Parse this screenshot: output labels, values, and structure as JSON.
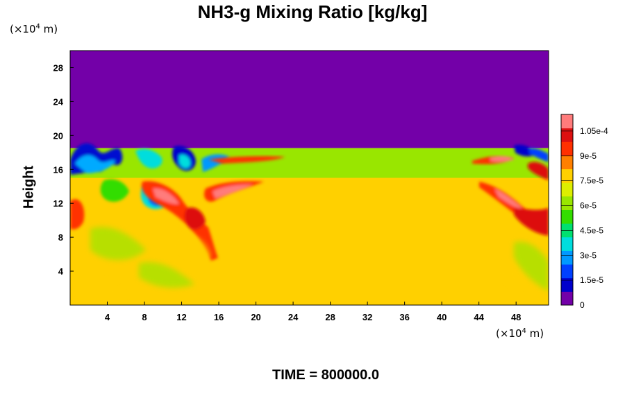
{
  "chart_data": {
    "type": "heatmap",
    "title": "NH3-g Mixing Ratio [kg/kg]",
    "ylabel": "Height",
    "x_unit": {
      "prefix": "(×10",
      "exp": "4",
      "suffix": " m)"
    },
    "y_unit": {
      "prefix": "(×10",
      "exp": "4",
      "suffix": " m)"
    },
    "xlim": [
      0,
      51.5
    ],
    "ylim": [
      0,
      30
    ],
    "x_ticks": [
      "4",
      "8",
      "12",
      "16",
      "20",
      "24",
      "28",
      "32",
      "36",
      "40",
      "44",
      "48"
    ],
    "x_tick_values": [
      4,
      8,
      12,
      16,
      20,
      24,
      28,
      32,
      36,
      40,
      44,
      48
    ],
    "y_ticks": [
      "4",
      "8",
      "12",
      "16",
      "20",
      "24",
      "28"
    ],
    "y_tick_values": [
      4,
      8,
      12,
      16,
      20,
      24,
      28
    ],
    "colorbar": {
      "min": 0,
      "max": 0.000115,
      "labels": [
        "0",
        "1.5e-5",
        "3e-5",
        "4.5e-5",
        "6e-5",
        "7.5e-5",
        "9e-5",
        "1.05e-4"
      ],
      "label_values": [
        0,
        1.5e-05,
        3e-05,
        4.5e-05,
        6e-05,
        7.5e-05,
        9e-05,
        0.000105
      ],
      "colors": [
        "#7300a8",
        "#0000cc",
        "#0040ff",
        "#0099ff",
        "#00dddd",
        "#00e070",
        "#33dd00",
        "#99e600",
        "#ddee00",
        "#ffd000",
        "#ff8000",
        "#ff3000",
        "#dd1010",
        "#ff7b7b"
      ]
    },
    "regions": [
      {
        "name": "upper-layer",
        "x": [
          0,
          51.5
        ],
        "y": [
          18.5,
          30
        ],
        "value": 0.0
      },
      {
        "name": "upper-green-band",
        "x": [
          0,
          51.5
        ],
        "y": [
          15,
          18.5
        ],
        "value": 6.2e-05
      },
      {
        "name": "lower-interior",
        "x": [
          0,
          51.5
        ],
        "y": [
          0,
          15
        ],
        "value": 8.1e-05
      }
    ]
  },
  "time_label": "TIME = 800000.0"
}
